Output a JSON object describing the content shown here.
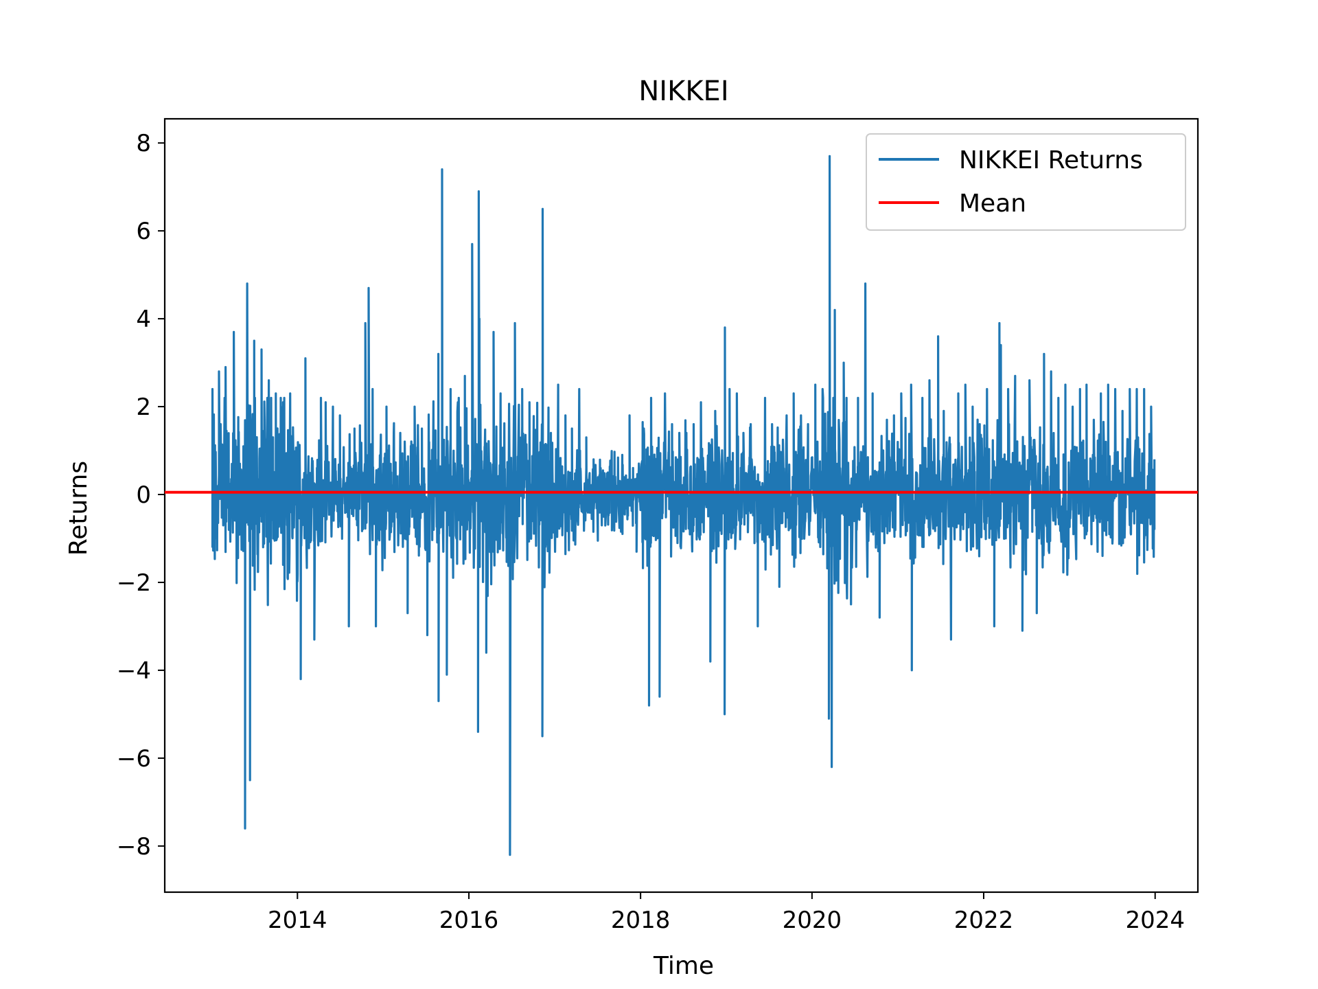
{
  "chart_data": {
    "type": "line",
    "title": "NIKKEI",
    "xlabel": "Time",
    "ylabel": "Returns",
    "xlim": [
      "2012-06-15",
      "2024-07-01"
    ],
    "ylim": [
      -9.05,
      8.55
    ],
    "x_ticks": [
      "2014",
      "2016",
      "2018",
      "2020",
      "2022",
      "2024"
    ],
    "y_ticks": [
      -8,
      -6,
      -4,
      -2,
      0,
      2,
      4,
      6,
      8
    ],
    "y_tick_labels": [
      "−8",
      "−6",
      "−4",
      "−2",
      "0",
      "2",
      "4",
      "6",
      "8"
    ],
    "grid": false,
    "legend_position": "upper right",
    "colors": {
      "returns": "#1f77b4",
      "mean": "#ff0000"
    },
    "series": [
      {
        "name": "NIKKEI Returns",
        "kind": "daily-returns",
        "date_range": [
          "2013-01-04",
          "2023-12-29"
        ],
        "x": [
          "2013-01-04",
          "2013-02-01",
          "2013-03-01",
          "2013-04-05",
          "2013-05-23",
          "2013-06-01",
          "2013-06-13",
          "2013-07-01",
          "2013-08-01",
          "2013-09-01",
          "2013-10-01",
          "2013-11-01",
          "2013-12-01",
          "2014-01-15",
          "2014-02-04",
          "2014-03-14",
          "2014-04-11",
          "2014-05-01",
          "2014-06-01",
          "2014-07-01",
          "2014-08-08",
          "2014-09-01",
          "2014-10-17",
          "2014-10-31",
          "2014-11-17",
          "2014-12-01",
          "2015-01-15",
          "2015-02-15",
          "2015-03-15",
          "2015-04-15",
          "2015-05-15",
          "2015-06-15",
          "2015-07-08",
          "2015-08-24",
          "2015-08-25",
          "2015-09-09",
          "2015-09-29",
          "2015-10-15",
          "2015-11-15",
          "2015-12-15",
          "2016-01-15",
          "2016-02-09",
          "2016-02-12",
          "2016-02-15",
          "2016-03-15",
          "2016-04-15",
          "2016-05-15",
          "2016-06-24",
          "2016-07-15",
          "2016-08-15",
          "2016-09-15",
          "2016-10-15",
          "2016-11-09",
          "2016-11-10",
          "2016-12-15",
          "2017-01-15",
          "2017-02-15",
          "2017-03-15",
          "2017-04-15",
          "2017-05-15",
          "2017-06-15",
          "2017-07-15",
          "2017-08-15",
          "2017-09-15",
          "2017-10-15",
          "2017-11-15",
          "2017-12-15",
          "2018-01-15",
          "2018-02-06",
          "2018-02-15",
          "2018-03-23",
          "2018-04-15",
          "2018-05-15",
          "2018-06-15",
          "2018-07-15",
          "2018-08-15",
          "2018-09-15",
          "2018-10-25",
          "2018-11-15",
          "2018-12-25",
          "2018-12-26",
          "2019-01-15",
          "2019-02-15",
          "2019-03-15",
          "2019-04-15",
          "2019-05-15",
          "2019-06-15",
          "2019-07-15",
          "2019-08-15",
          "2019-09-15",
          "2019-10-15",
          "2019-11-15",
          "2019-12-15",
          "2020-01-15",
          "2020-02-15",
          "2020-03-13",
          "2020-03-16",
          "2020-03-25",
          "2020-04-07",
          "2020-05-15",
          "2020-06-15",
          "2020-07-15",
          "2020-08-15",
          "2020-09-15",
          "2020-10-15",
          "2020-11-15",
          "2020-12-15",
          "2021-01-15",
          "2021-02-26",
          "2021-03-01",
          "2021-04-15",
          "2021-05-15",
          "2021-06-21",
          "2021-07-15",
          "2021-08-15",
          "2021-09-15",
          "2021-10-15",
          "2021-11-15",
          "2021-12-15",
          "2022-01-15",
          "2022-02-15",
          "2022-03-09",
          "2022-03-15",
          "2022-04-15",
          "2022-05-15",
          "2022-06-15",
          "2022-07-15",
          "2022-08-15",
          "2022-09-15",
          "2022-10-15",
          "2022-11-15",
          "2022-12-15",
          "2023-01-15",
          "2023-02-15",
          "2023-03-15",
          "2023-04-15",
          "2023-05-15",
          "2023-06-15",
          "2023-07-15",
          "2023-08-15",
          "2023-09-15",
          "2023-10-15",
          "2023-11-15",
          "2023-12-15",
          "2023-12-29"
        ],
        "values": [
          2.4,
          2.8,
          2.9,
          3.7,
          -7.6,
          4.8,
          -6.5,
          3.5,
          3.3,
          2.6,
          2.3,
          2.1,
          2.3,
          -4.2,
          3.1,
          -3.3,
          2.2,
          2.1,
          2.0,
          1.8,
          -3.0,
          1.5,
          3.9,
          4.7,
          2.4,
          -3.0,
          2.0,
          1.4,
          1.4,
          -2.7,
          2.0,
          1.5,
          -3.2,
          3.2,
          -4.7,
          7.4,
          -4.1,
          2.4,
          2.1,
          2.7,
          5.7,
          -5.4,
          6.9,
          4.0,
          -3.6,
          3.7,
          2.3,
          -8.2,
          3.9,
          2.4,
          2.1,
          1.4,
          -5.5,
          6.5,
          1.4,
          2.5,
          1.8,
          1.5,
          2.4,
          1.3,
          0.8,
          0.6,
          0.5,
          0.4,
          0.9,
          1.8,
          -1.3,
          1.5,
          -4.8,
          2.2,
          -4.6,
          2.3,
          1.6,
          1.4,
          1.4,
          1.6,
          2.1,
          -3.8,
          1.9,
          -5.0,
          3.8,
          2.4,
          2.3,
          1.4,
          1.6,
          -3.0,
          2.2,
          1.6,
          -2.1,
          1.8,
          2.3,
          1.8,
          1.6,
          2.5,
          2.4,
          -5.1,
          7.7,
          -6.2,
          4.2,
          3.0,
          -2.5,
          2.2,
          4.8,
          2.3,
          -2.8,
          1.7,
          1.8,
          2.3,
          2.5,
          -4.0,
          2.2,
          2.6,
          3.6,
          1.9,
          -3.3,
          2.3,
          2.5,
          2.0,
          1.6,
          2.4,
          -3.0,
          3.9,
          3.4,
          2.4,
          2.7,
          -3.1,
          2.6,
          -2.7,
          3.2,
          2.8,
          2.2,
          2.5,
          2.0,
          2.4,
          2.5,
          1.7,
          2.3,
          2.5,
          2.4,
          1.9,
          2.4,
          2.4,
          2.4,
          2.0,
          0.8
        ]
      },
      {
        "name": "Mean",
        "kind": "horizontal-line",
        "value": 0.05
      }
    ]
  }
}
